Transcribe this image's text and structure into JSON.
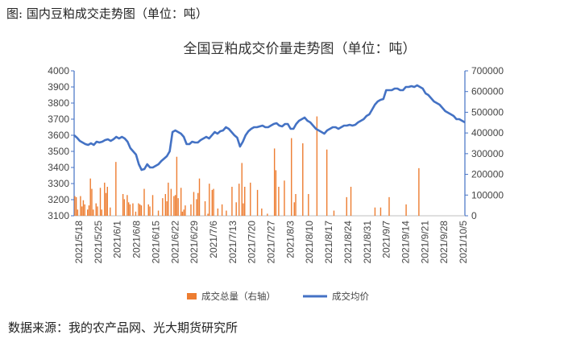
{
  "caption": "图: 国内豆粕成交走势图（单位：吨）",
  "source": "数据来源：我的农产品网、光大期货研究所",
  "chart_data": {
    "type": "bar+line",
    "title": "全国豆粕成交价量走势图（单位：吨）",
    "x_tick_labels": [
      "2021/5/18",
      "2021/5/25",
      "2021/6/1",
      "2021/6/8",
      "2021/6/15",
      "2021/6/22",
      "2021/6/29",
      "2021/7/6",
      "2021/7/13",
      "2021/7/20",
      "2021/7/27",
      "2021/8/3",
      "2021/8/10",
      "2021/8/17",
      "2021/8/24",
      "2021/8/31",
      "2021/9/7",
      "2021/9/14",
      "2021/9/21",
      "2021/9/28",
      "2021/10/5"
    ],
    "y_left": {
      "min": 3100,
      "max": 4000,
      "ticks": [
        3100,
        3200,
        3300,
        3400,
        3500,
        3600,
        3700,
        3800,
        3900,
        4000
      ]
    },
    "y_right": {
      "min": 0,
      "max": 700000,
      "ticks": [
        0,
        100000,
        200000,
        300000,
        400000,
        500000,
        600000,
        700000
      ]
    },
    "axis_color": "#4472C4",
    "series": [
      {
        "name": "成交总量（右轴）",
        "kind": "bar",
        "axis": "right",
        "color": "#ED7D31",
        "values": [
          95000,
          90000,
          30000,
          0,
          95000,
          45000,
          75000,
          55000,
          0,
          30000,
          50000,
          180000,
          130000,
          30000,
          0,
          60000,
          45000,
          0,
          135000,
          30000,
          0,
          160000,
          110000,
          140000,
          0,
          40000,
          0,
          0,
          0,
          260000,
          0,
          0,
          0,
          0,
          105000,
          80000,
          0,
          100000,
          65000,
          55000,
          0,
          60000,
          0,
          20000,
          0,
          60000,
          55000,
          50000,
          0,
          130000,
          0,
          0,
          55000,
          45000,
          0,
          100000,
          0,
          0,
          0,
          25000,
          0,
          0,
          85000,
          0,
          105000,
          70000,
          160000,
          0,
          130000,
          0,
          95000,
          100000,
          285000,
          85000,
          0,
          135000,
          20000,
          30000,
          50000,
          0,
          0,
          0,
          55000,
          0,
          115000,
          0,
          80000,
          110000,
          180000,
          0,
          0,
          0,
          70000,
          0,
          10000,
          155000,
          0,
          125000,
          130000,
          0,
          0,
          35000,
          0,
          0,
          55000,
          0,
          0,
          25000,
          0,
          0,
          0,
          140000,
          0,
          0,
          65000,
          0,
          155000,
          0,
          255000,
          60000,
          140000,
          0,
          0,
          0,
          160000,
          0,
          0,
          0,
          0,
          125000,
          0,
          0,
          35000,
          0,
          0,
          0,
          10000,
          0,
          0,
          0,
          0,
          325000,
          220000,
          0,
          140000,
          0,
          0,
          0,
          170000,
          0,
          0,
          0,
          0,
          375000,
          0,
          65000,
          105000,
          0,
          0,
          0,
          0,
          350000,
          0,
          0,
          0,
          105000,
          0,
          0,
          0,
          0,
          0,
          480000,
          0,
          0,
          0,
          0,
          0,
          0,
          320000,
          0,
          0,
          0,
          0,
          25000,
          0,
          0,
          0,
          0,
          0,
          0,
          0,
          0,
          90000,
          0,
          0,
          140000,
          0,
          0,
          0,
          0,
          0,
          0,
          0,
          0,
          0,
          0,
          0,
          0,
          0,
          0,
          0,
          0,
          40000,
          0,
          0,
          0,
          40000,
          0,
          0,
          0,
          0,
          0,
          90000,
          0,
          0,
          0,
          0,
          0,
          0,
          0,
          0,
          0,
          0,
          0,
          55000,
          0,
          0,
          0,
          0,
          0,
          0,
          0,
          0,
          230000,
          0,
          0,
          0,
          0,
          0,
          0,
          0,
          0,
          0,
          0,
          0,
          0,
          0,
          0,
          0,
          0,
          0,
          0,
          0,
          0,
          0,
          0,
          0,
          0,
          0,
          0,
          0,
          0,
          0,
          0,
          0,
          0
        ]
      },
      {
        "name": "成交均价",
        "kind": "line",
        "axis": "left",
        "color": "#4472C4",
        "values": [
          3600,
          3585,
          3565,
          3555,
          3545,
          3540,
          3550,
          3540,
          3560,
          3555,
          3560,
          3570,
          3575,
          3565,
          3575,
          3590,
          3580,
          3590,
          3580,
          3560,
          3520,
          3500,
          3480,
          3420,
          3385,
          3390,
          3420,
          3400,
          3400,
          3410,
          3420,
          3440,
          3455,
          3470,
          3500,
          3620,
          3630,
          3620,
          3610,
          3590,
          3545,
          3545,
          3560,
          3555,
          3555,
          3570,
          3580,
          3590,
          3580,
          3600,
          3620,
          3610,
          3625,
          3630,
          3650,
          3640,
          3620,
          3600,
          3585,
          3530,
          3560,
          3600,
          3625,
          3640,
          3650,
          3650,
          3655,
          3660,
          3650,
          3650,
          3660,
          3670,
          3675,
          3660,
          3655,
          3670,
          3670,
          3640,
          3640,
          3670,
          3690,
          3700,
          3710,
          3690,
          3680,
          3660,
          3640,
          3630,
          3620,
          3610,
          3630,
          3640,
          3650,
          3650,
          3640,
          3650,
          3660,
          3660,
          3665,
          3660,
          3665,
          3680,
          3690,
          3700,
          3720,
          3730,
          3760,
          3790,
          3810,
          3820,
          3825,
          3880,
          3880,
          3880,
          3890,
          3890,
          3880,
          3880,
          3900,
          3900,
          3905,
          3900,
          3910,
          3900,
          3890,
          3860,
          3850,
          3830,
          3810,
          3800,
          3790,
          3770,
          3750,
          3740,
          3730,
          3720,
          3700,
          3700,
          3690,
          3680
        ]
      }
    ],
    "legend_position": "bottom",
    "grid": false
  }
}
